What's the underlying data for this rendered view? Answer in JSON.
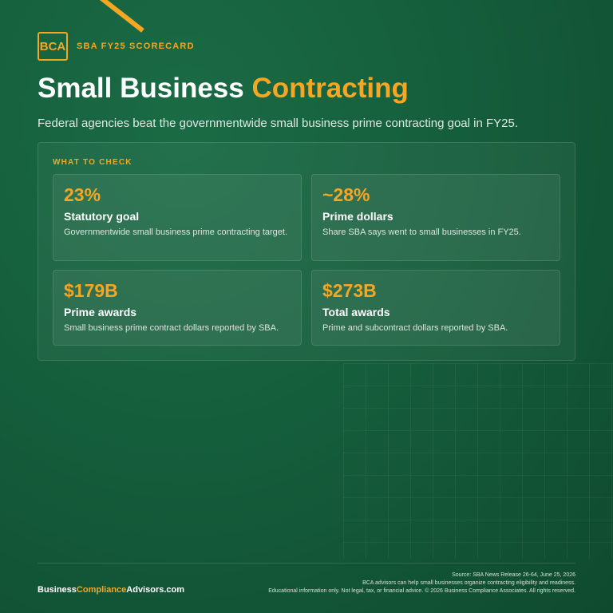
{
  "brand": {
    "logo_text": "BCA",
    "tag": "SBA FY25 SCORECARD",
    "accent_color": "#f5a623",
    "background_color": "#155e3c"
  },
  "title": {
    "part1": "Small Business",
    "part2": "Contracting"
  },
  "subtitle": "Federal agencies beat the governmentwide small business prime contracting goal in FY25.",
  "panel": {
    "label": "WHAT TO CHECK",
    "cards": [
      {
        "value": "23%",
        "title": "Statutory goal",
        "desc": "Governmentwide small business prime contracting target."
      },
      {
        "value": "~28%",
        "title": "Prime dollars",
        "desc": "Share SBA says went to small businesses in FY25."
      },
      {
        "value": "$179B",
        "title": "Prime awards",
        "desc": "Small business prime contract dollars reported by SBA."
      },
      {
        "value": "$273B",
        "title": "Total awards",
        "desc": "Prime and subcontract dollars reported by SBA."
      }
    ]
  },
  "footer": {
    "brand_part1": "Business",
    "brand_part2": "Compliance",
    "brand_part3": "Advisors.com",
    "source": "Source: SBA News Release 26-64, June 25, 2026",
    "note1": "BCA advisors can help small businesses organize contracting eligibility and readiness.",
    "note2": "Educational information only. Not legal, tax, or financial advice. © 2026 Business Compliance Associates. All rights reserved."
  }
}
